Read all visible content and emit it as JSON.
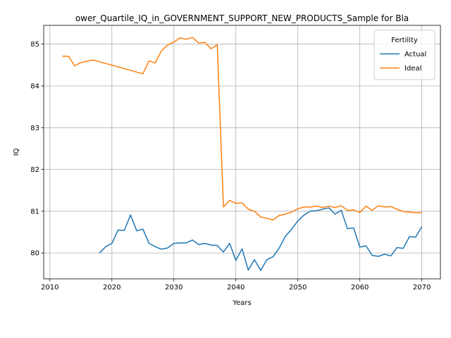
{
  "chart_data": {
    "type": "line",
    "title": "ower_Quartile_IQ_in_GOVERNMENT_SUPPORT_NEW_PRODUCTS_Sample for Bla",
    "xlabel": "Years",
    "ylabel": "IQ",
    "xlim": [
      2009,
      2073
    ],
    "ylim": [
      79.38,
      85.45
    ],
    "xticks": [
      2010,
      2020,
      2030,
      2040,
      2050,
      2060,
      2070
    ],
    "yticks": [
      80,
      81,
      82,
      83,
      84,
      85
    ],
    "grid": true,
    "legend": {
      "title": "Fertility",
      "placement": "top-right"
    },
    "series": [
      {
        "name": "Actual",
        "color": "#1f77b4",
        "x": [
          2018,
          2019,
          2020,
          2021,
          2022,
          2023,
          2024,
          2025,
          2026,
          2027,
          2028,
          2029,
          2030,
          2031,
          2032,
          2033,
          2034,
          2035,
          2036,
          2037,
          2038,
          2039,
          2040,
          2041,
          2042,
          2043,
          2044,
          2045,
          2046,
          2047,
          2048,
          2049,
          2050,
          2051,
          2052,
          2053,
          2054,
          2055,
          2056,
          2057,
          2058,
          2059,
          2060,
          2061,
          2062,
          2063,
          2064,
          2065,
          2066,
          2067,
          2068,
          2069,
          2070
        ],
        "values": [
          80.0,
          80.15,
          80.23,
          80.55,
          80.54,
          80.91,
          80.53,
          80.57,
          80.23,
          80.15,
          80.09,
          80.12,
          80.23,
          80.24,
          80.24,
          80.31,
          80.2,
          80.23,
          80.19,
          80.18,
          80.02,
          80.23,
          79.82,
          80.1,
          79.59,
          79.84,
          79.58,
          79.84,
          79.91,
          80.12,
          80.4,
          80.57,
          80.77,
          80.91,
          81.0,
          81.01,
          81.05,
          81.08,
          80.93,
          81.02,
          80.58,
          80.6,
          80.14,
          80.17,
          79.94,
          79.92,
          79.97,
          79.93,
          80.13,
          80.11,
          80.39,
          80.38,
          80.63
        ]
      },
      {
        "name": "Ideal",
        "color": "#ff7f0e",
        "x": [
          2012,
          2013,
          2014,
          2015,
          2016,
          2017,
          2025,
          2026,
          2027,
          2028,
          2029,
          2030,
          2031,
          2032,
          2033,
          2034,
          2035,
          2036,
          2037,
          2038,
          2039,
          2040,
          2041,
          2042,
          2043,
          2044,
          2045,
          2046,
          2047,
          2048,
          2049,
          2050,
          2051,
          2052,
          2053,
          2054,
          2055,
          2056,
          2057,
          2058,
          2059,
          2060,
          2061,
          2062,
          2063,
          2064,
          2065,
          2066,
          2067,
          2068,
          2069,
          2070
        ],
        "values": [
          84.71,
          84.71,
          84.48,
          84.56,
          84.59,
          84.62,
          84.29,
          84.6,
          84.55,
          84.84,
          84.98,
          85.05,
          85.15,
          85.12,
          85.16,
          85.03,
          85.04,
          84.89,
          84.99,
          81.1,
          81.26,
          81.19,
          81.2,
          81.05,
          81.0,
          80.86,
          80.83,
          80.79,
          80.9,
          80.93,
          80.98,
          81.06,
          81.1,
          81.1,
          81.12,
          81.09,
          81.12,
          81.09,
          81.13,
          81.02,
          81.03,
          80.97,
          81.12,
          81.02,
          81.13,
          81.1,
          81.11,
          81.05,
          80.99,
          80.98,
          80.96,
          80.97
        ]
      }
    ]
  }
}
